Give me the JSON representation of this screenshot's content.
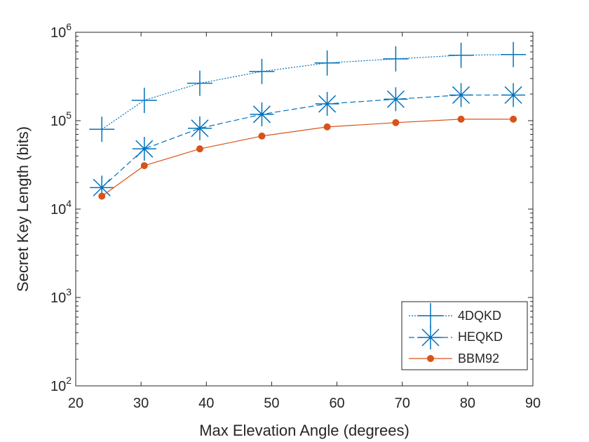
{
  "chart_data": {
    "type": "line",
    "title": "",
    "xlabel": "Max Elevation Angle (degrees)",
    "ylabel": "Secret Key Length (bits)",
    "xlim": [
      20,
      90
    ],
    "ylim": [
      100,
      1000000
    ],
    "yscale": "log",
    "x_ticks": [
      20,
      30,
      40,
      50,
      60,
      70,
      80,
      90
    ],
    "y_ticks": [
      {
        "value": 100,
        "base": "10",
        "exp": "2"
      },
      {
        "value": 1000,
        "base": "10",
        "exp": "3"
      },
      {
        "value": 10000,
        "base": "10",
        "exp": "4"
      },
      {
        "value": 100000,
        "base": "10",
        "exp": "5"
      },
      {
        "value": 1000000,
        "base": "10",
        "exp": "6"
      }
    ],
    "grid": false,
    "legend_position": "bottom-right",
    "x": [
      24,
      30.5,
      39,
      48.5,
      58.5,
      69,
      79,
      87
    ],
    "series": [
      {
        "name": "4DQKD",
        "color": "#0072BD",
        "marker": "plus",
        "line": "dotted",
        "values": [
          80000,
          170000,
          265000,
          360000,
          450000,
          500000,
          550000,
          560000
        ]
      },
      {
        "name": "HEQKD",
        "color": "#0072BD",
        "marker": "asterisk",
        "line": "dashed",
        "values": [
          17500,
          48000,
          82000,
          118000,
          155000,
          175000,
          195000,
          195000
        ]
      },
      {
        "name": "BBM92",
        "color": "#D95319",
        "marker": "dot",
        "line": "solid",
        "values": [
          14000,
          31000,
          48000,
          67000,
          85000,
          95000,
          104000,
          104000
        ]
      }
    ]
  }
}
